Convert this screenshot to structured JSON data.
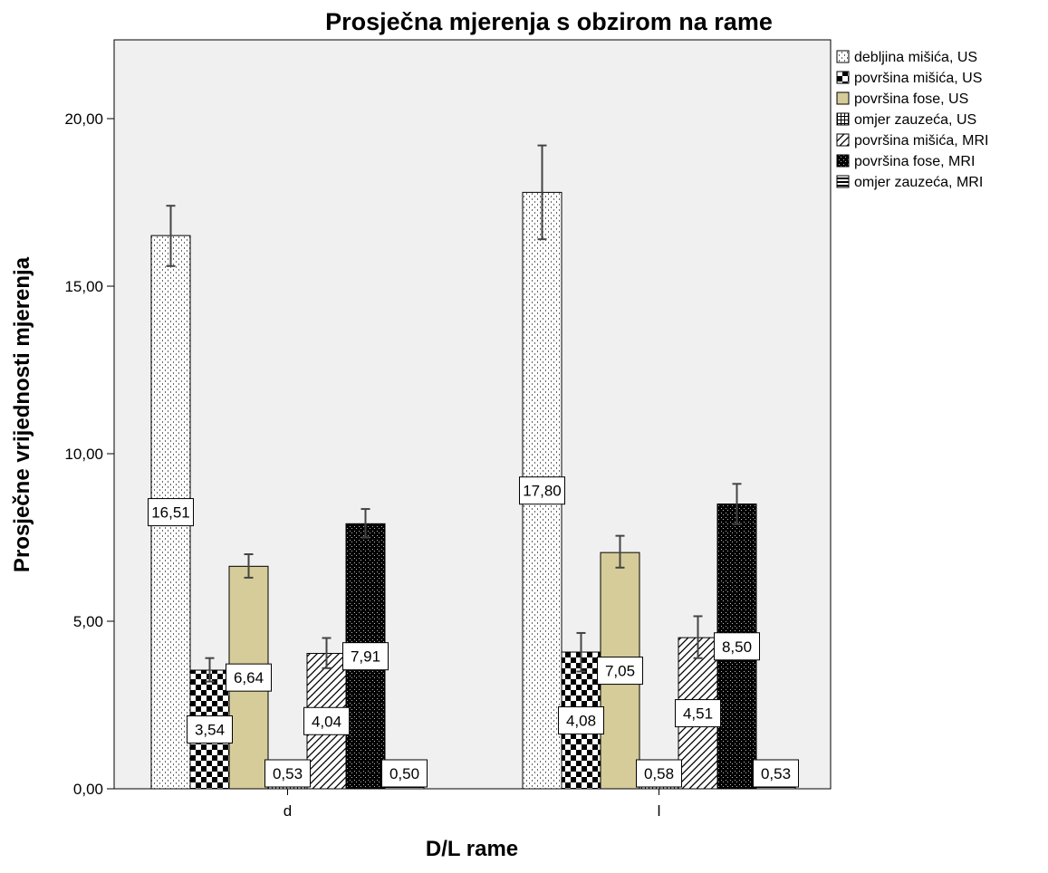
{
  "chart_data": {
    "type": "bar",
    "title": "Prosječna mjerenja s obzirom na rame",
    "xlabel": "D/L rame",
    "ylabel": "Prosječne vrijednosti mjerenja",
    "categories": [
      "d",
      "l"
    ],
    "ylim": [
      0,
      20
    ],
    "yticks": [
      "0,00",
      "5,00",
      "10,00",
      "15,00",
      "20,00"
    ],
    "grid": false,
    "legend_position": "right",
    "plot_background": "#f0f0f0",
    "series": [
      {
        "name": "debljina mišića, US",
        "values": [
          16.51,
          17.8
        ],
        "labels": [
          "16,51",
          "17,80"
        ],
        "error_low": [
          15.6,
          16.4
        ],
        "error_high": [
          17.4,
          19.2
        ],
        "pattern": "dots",
        "color": "#ffffff"
      },
      {
        "name": "površina mišića, US",
        "values": [
          3.54,
          4.08
        ],
        "labels": [
          "3,54",
          "4,08"
        ],
        "error_low": [
          3.2,
          3.5
        ],
        "error_high": [
          3.9,
          4.65
        ],
        "pattern": "checker",
        "color": "#000000"
      },
      {
        "name": "površina fose, US",
        "values": [
          6.64,
          7.05
        ],
        "labels": [
          "6,64",
          "7,05"
        ],
        "error_low": [
          6.3,
          6.6
        ],
        "error_high": [
          7.0,
          7.55
        ],
        "pattern": "solid",
        "color": "#d6cc99"
      },
      {
        "name": "omjer zauzeća, US",
        "values": [
          0.53,
          0.58
        ],
        "labels": [
          "0,53",
          "0,58"
        ],
        "error_low": [
          0.5,
          0.55
        ],
        "error_high": [
          0.56,
          0.61
        ],
        "pattern": "grid",
        "color": "#000000"
      },
      {
        "name": "površina mišića, MRI",
        "values": [
          4.04,
          4.51
        ],
        "labels": [
          "4,04",
          "4,51"
        ],
        "error_low": [
          3.6,
          3.9
        ],
        "error_high": [
          4.5,
          5.15
        ],
        "pattern": "hatch",
        "color": "#ffffff"
      },
      {
        "name": "površina fose, MRI",
        "values": [
          7.91,
          8.5
        ],
        "labels": [
          "7,91",
          "8,50"
        ],
        "error_low": [
          7.5,
          7.9
        ],
        "error_high": [
          8.35,
          9.1
        ],
        "pattern": "dark",
        "color": "#000000"
      },
      {
        "name": "omjer zauzeća, MRI",
        "values": [
          0.5,
          0.53
        ],
        "labels": [
          "0,50",
          "0,53"
        ],
        "error_low": [
          0.47,
          0.5
        ],
        "error_high": [
          0.53,
          0.56
        ],
        "pattern": "hlines",
        "color": "#000000"
      }
    ]
  }
}
